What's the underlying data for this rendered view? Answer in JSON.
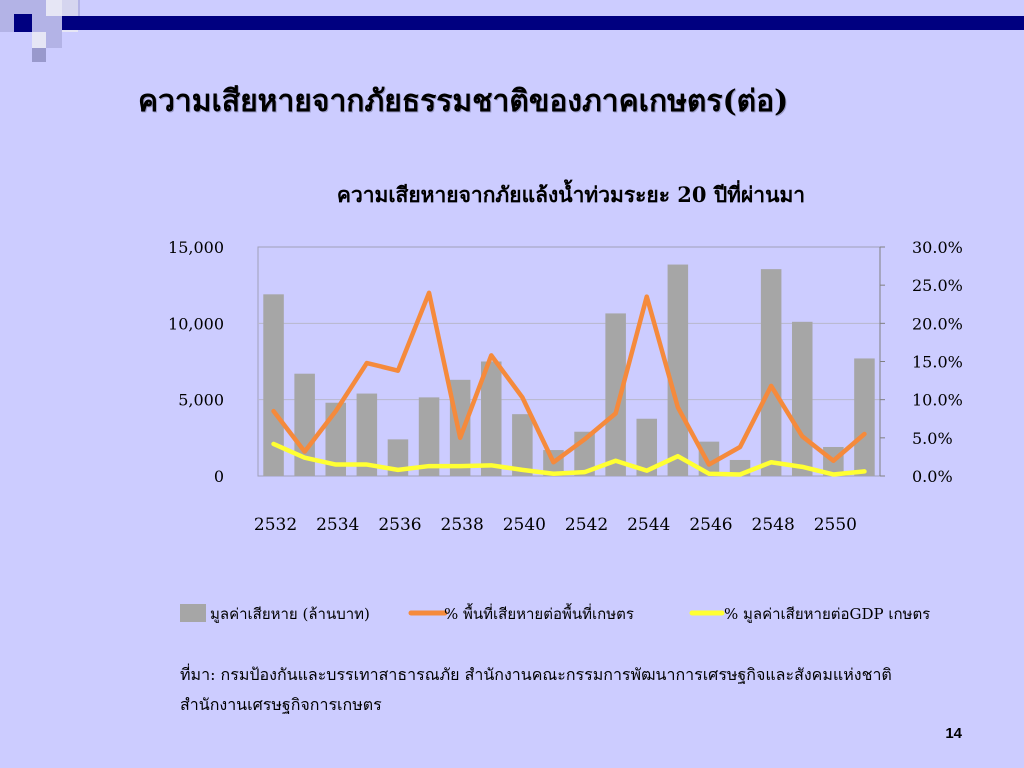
{
  "slide": {
    "title": "ความเสียหายจากภัยธรรมชาติของภาคเกษตร(ต่อ)",
    "source": "ที่มา: กรมป้องกันและบรรเทาสาธารณภัย สำนักงานคณะกรรมการพัฒนาการเศรษฐกิจและสังคมแห่งชาติ สำนักงานเศรษฐกิจการเกษตร",
    "page_number": "14"
  },
  "colors": {
    "background": "#ccccff",
    "bar": "#a6a6a6",
    "line_area": "#f58a3c",
    "line_gdp": "#ffff33",
    "deco_dark": "#000080",
    "deco_mid": "#9999cc",
    "deco_light": "#e6e6f5"
  },
  "chart_data": {
    "type": "bar",
    "title": "ความเสียหายจากภัยแล้งน้ำท่วมระยะ 20 ปีที่ผ่านมา",
    "x": [
      2532,
      2533,
      2534,
      2535,
      2536,
      2537,
      2538,
      2539,
      2540,
      2541,
      2542,
      2543,
      2544,
      2545,
      2546,
      2547,
      2548,
      2549,
      2550,
      2551
    ],
    "x_tick_labels": [
      "2532",
      "2534",
      "2536",
      "2538",
      "2540",
      "2542",
      "2544",
      "2546",
      "2548",
      "2550"
    ],
    "y_left": {
      "range": [
        0,
        15000
      ],
      "ticks": [
        "0",
        "5,000",
        "10,000",
        "15,000"
      ]
    },
    "y_right": {
      "range": [
        0,
        30
      ],
      "ticks": [
        "0.0%",
        "5.0%",
        "10.0%",
        "15.0%",
        "20.0%",
        "25.0%",
        "30.0%"
      ]
    },
    "grid": true,
    "legend_position": "bottom",
    "series": [
      {
        "name": "มูลค่าเสียหาย (ล้านบาท)",
        "type": "bar",
        "axis": "left",
        "values": [
          11900,
          6700,
          4800,
          5400,
          2400,
          5150,
          6300,
          7500,
          4050,
          1700,
          2900,
          10650,
          3750,
          13850,
          2250,
          1050,
          13550,
          10100,
          1900,
          7700
        ]
      },
      {
        "name": "%  พื้นที่เสียหายต่อพื้นที่เกษตร",
        "type": "line",
        "axis": "right",
        "values": [
          8.5,
          3.2,
          8.5,
          14.8,
          13.8,
          24.0,
          5.0,
          15.8,
          10.3,
          1.8,
          4.8,
          8.2,
          23.5,
          9.0,
          1.5,
          3.8,
          11.8,
          5.2,
          2.0,
          5.5
        ]
      },
      {
        "name": "% มูลค่าเสียหายต่อGDP เกษตร",
        "type": "line",
        "axis": "right",
        "values": [
          4.2,
          2.4,
          1.5,
          1.5,
          0.8,
          1.3,
          1.3,
          1.4,
          0.8,
          0.3,
          0.5,
          2.0,
          0.7,
          2.6,
          0.3,
          0.2,
          1.8,
          1.2,
          0.2,
          0.6
        ]
      }
    ]
  }
}
